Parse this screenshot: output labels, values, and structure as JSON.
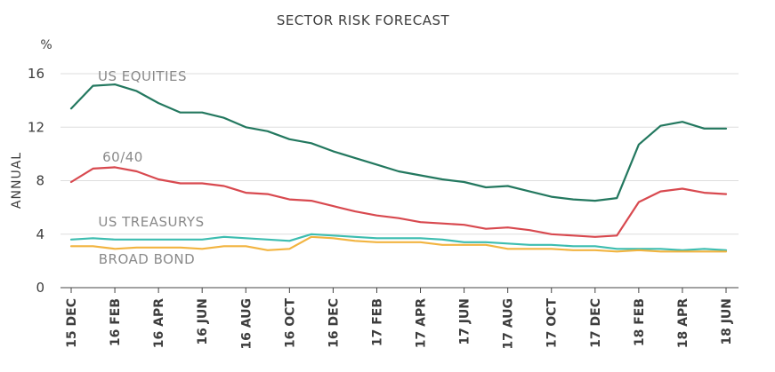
{
  "chart_data": {
    "type": "line",
    "title": "SECTOR RISK FORECAST",
    "unit_label": "%",
    "ylabel": "ANNUAL",
    "ylim": [
      0,
      16
    ],
    "yticks": [
      "0",
      "4",
      "8",
      "12",
      "16"
    ],
    "grid": true,
    "x_tick_labels": [
      "15 DEC",
      "16 FEB",
      "16 APR",
      "16 JUN",
      "16 AUG",
      "16 OCT",
      "16 DEC",
      "17 FEB",
      "17 APR",
      "17 JUN",
      "17 AUG",
      "17 OCT",
      "17 DEC",
      "18 FEB",
      "18 APR",
      "18 JUN"
    ],
    "x": [
      "2015-12",
      "2016-01",
      "2016-02",
      "2016-03",
      "2016-04",
      "2016-05",
      "2016-06",
      "2016-07",
      "2016-08",
      "2016-09",
      "2016-10",
      "2016-11",
      "2016-12",
      "2017-01",
      "2017-02",
      "2017-03",
      "2017-04",
      "2017-05",
      "2017-06",
      "2017-07",
      "2017-08",
      "2017-09",
      "2017-10",
      "2017-11",
      "2017-12",
      "2018-01",
      "2018-02",
      "2018-03",
      "2018-04",
      "2018-05",
      "2018-06"
    ],
    "series": [
      {
        "name": "US EQUITIES",
        "color": "#23785f",
        "values": [
          13.4,
          15.1,
          15.2,
          14.7,
          13.8,
          13.1,
          13.1,
          12.7,
          12.0,
          11.7,
          11.1,
          10.8,
          10.2,
          9.7,
          9.2,
          8.7,
          8.4,
          8.1,
          7.9,
          7.5,
          7.6,
          7.2,
          6.8,
          6.6,
          6.5,
          6.7,
          10.7,
          12.1,
          12.4,
          11.9,
          11.9
        ]
      },
      {
        "name": "60/40",
        "color": "#d8494f",
        "values": [
          7.9,
          8.9,
          9.0,
          8.7,
          8.1,
          7.8,
          7.8,
          7.6,
          7.1,
          7.0,
          6.6,
          6.5,
          6.1,
          5.7,
          5.4,
          5.2,
          4.9,
          4.8,
          4.7,
          4.4,
          4.5,
          4.3,
          4.0,
          3.9,
          3.8,
          3.9,
          6.4,
          7.2,
          7.4,
          7.1,
          7.0
        ]
      },
      {
        "name": "US TREASURYS",
        "color": "#3dbdb0",
        "values": [
          3.6,
          3.7,
          3.6,
          3.6,
          3.6,
          3.6,
          3.6,
          3.8,
          3.7,
          3.6,
          3.5,
          4.0,
          3.9,
          3.8,
          3.7,
          3.7,
          3.7,
          3.6,
          3.4,
          3.4,
          3.3,
          3.2,
          3.2,
          3.1,
          3.1,
          2.9,
          2.9,
          2.9,
          2.8,
          2.9,
          2.8
        ]
      },
      {
        "name": "BROAD BOND",
        "color": "#f2b440",
        "values": [
          3.1,
          3.1,
          2.9,
          3.0,
          3.0,
          3.0,
          2.9,
          3.1,
          3.1,
          2.8,
          2.9,
          3.8,
          3.7,
          3.5,
          3.4,
          3.4,
          3.4,
          3.2,
          3.2,
          3.2,
          2.9,
          2.9,
          2.9,
          2.8,
          2.8,
          2.7,
          2.8,
          2.7,
          2.7,
          2.7,
          2.7
        ]
      }
    ]
  }
}
